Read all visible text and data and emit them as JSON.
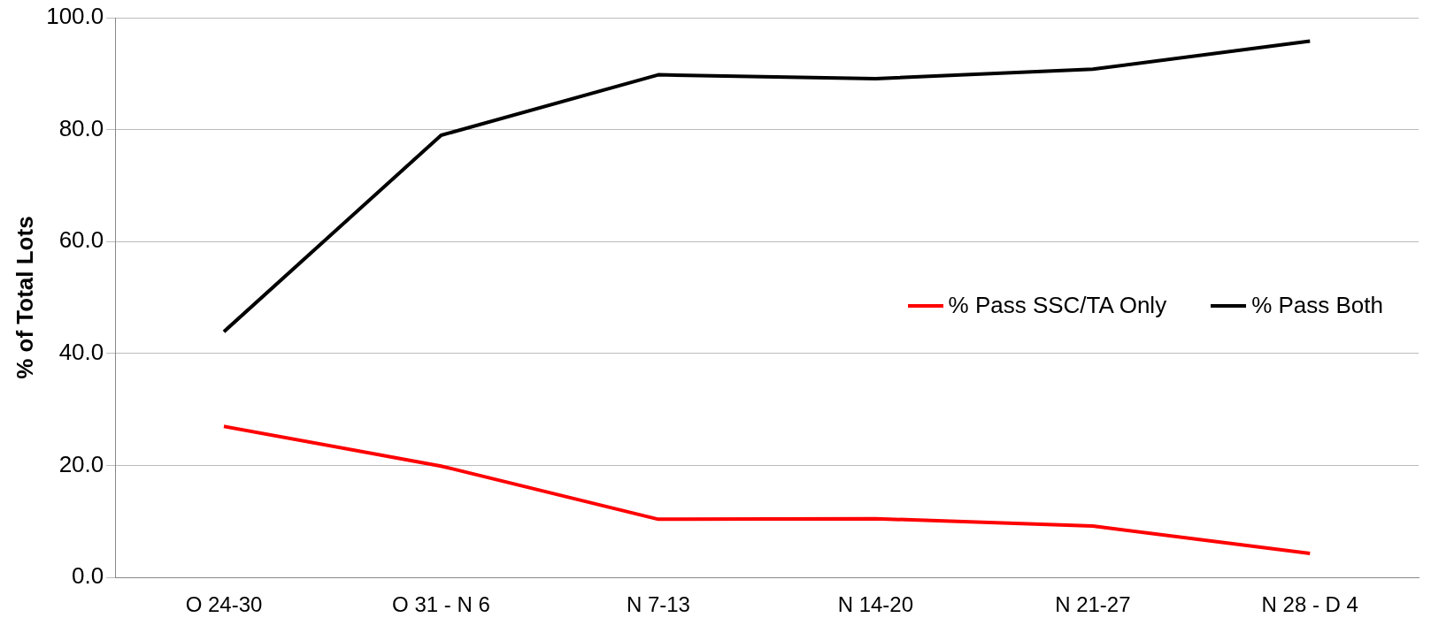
{
  "chart_data": {
    "type": "line",
    "ylabel": "% of Total Lots",
    "categories": [
      "O 24-30",
      "O 31 - N 6",
      "N 7-13",
      "N 14-20",
      "N 21-27",
      "N 28 - D 4"
    ],
    "series": [
      {
        "name": "% Pass SSC/TA Only",
        "color": "#ff0000",
        "values": [
          27.0,
          19.9,
          10.4,
          10.5,
          9.2,
          4.3
        ]
      },
      {
        "name": "% Pass Both",
        "color": "#000000",
        "values": [
          43.9,
          79.0,
          89.8,
          89.1,
          90.8,
          95.8
        ]
      }
    ],
    "ylim": [
      0,
      100
    ],
    "yticks": [
      {
        "value": 0,
        "label": "0.0"
      },
      {
        "value": 20,
        "label": "20.0"
      },
      {
        "value": 40,
        "label": "40.0"
      },
      {
        "value": 60,
        "label": "60.0"
      },
      {
        "value": 80,
        "label": "80.0"
      },
      {
        "value": 100,
        "label": "100.0"
      }
    ],
    "grid": "y",
    "legend": "right",
    "marker": "none",
    "line_style": "solid"
  }
}
